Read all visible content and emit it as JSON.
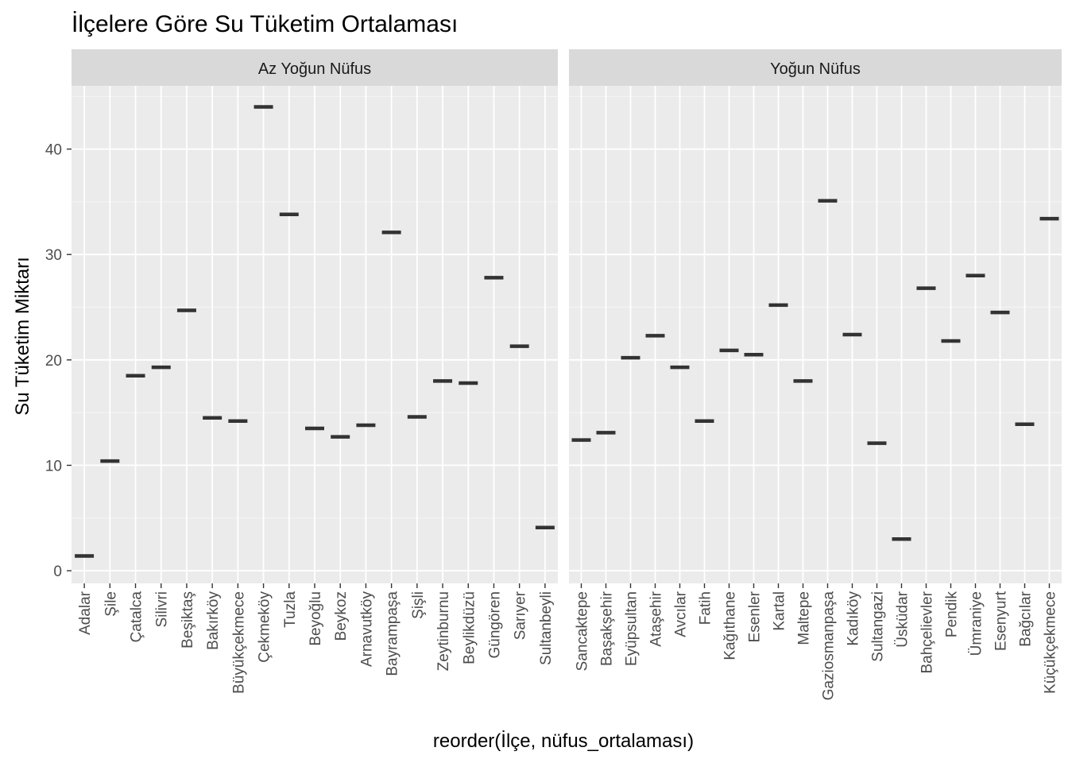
{
  "chart_data": {
    "type": "scatter",
    "title": "İlçelere Göre Su Tüketim Ortalaması",
    "xlabel": "reorder(İlçe, nüfus_ortalaması)",
    "ylabel": "Su Tüketim Miktarı",
    "ylim": [
      -1.2,
      46
    ],
    "yticks": [
      0,
      10,
      20,
      30,
      40
    ],
    "grid": true,
    "marker": "horizontal-bar",
    "panels": [
      {
        "name": "Az Yoğun Nüfus",
        "categories": [
          "Adalar",
          "Şile",
          "Çatalca",
          "Silivri",
          "Beşiktaş",
          "Bakırköy",
          "Büyükçekmece",
          "Çekmeköy",
          "Tuzla",
          "Beyoğlu",
          "Beykoz",
          "Arnavutköy",
          "Bayrampaşa",
          "Şişli",
          "Zeytinburnu",
          "Beylikdüzü",
          "Güngören",
          "Sarıyer",
          "Sultanbeyli"
        ],
        "values": [
          1.4,
          10.4,
          18.5,
          19.3,
          24.7,
          14.5,
          14.2,
          44.0,
          33.8,
          13.5,
          12.7,
          13.8,
          32.1,
          14.6,
          18.0,
          17.8,
          27.8,
          21.3,
          4.1
        ]
      },
      {
        "name": "Yoğun Nüfus",
        "categories": [
          "Sancaktepe",
          "Başakşehir",
          "Eyüpsultan",
          "Ataşehir",
          "Avcılar",
          "Fatih",
          "Kağıthane",
          "Esenler",
          "Kartal",
          "Maltepe",
          "Gaziosmanpaşa",
          "Kadıköy",
          "Sultangazi",
          "Üsküdar",
          "Bahçelievler",
          "Pendik",
          "Ümraniye",
          "Esenyurt",
          "Bağcılar",
          "Küçükçekmece"
        ],
        "values": [
          12.4,
          13.1,
          20.2,
          22.3,
          19.3,
          14.2,
          20.9,
          20.5,
          25.2,
          18.0,
          35.1,
          22.4,
          12.1,
          3.0,
          26.8,
          21.8,
          28.0,
          24.5,
          13.9,
          33.4
        ]
      }
    ]
  },
  "colors": {
    "panel_bg": "#ebebeb",
    "strip_bg": "#d9d9d9",
    "grid_major": "#ffffff",
    "marker": "#333333",
    "tick_text": "#4d4d4d"
  }
}
